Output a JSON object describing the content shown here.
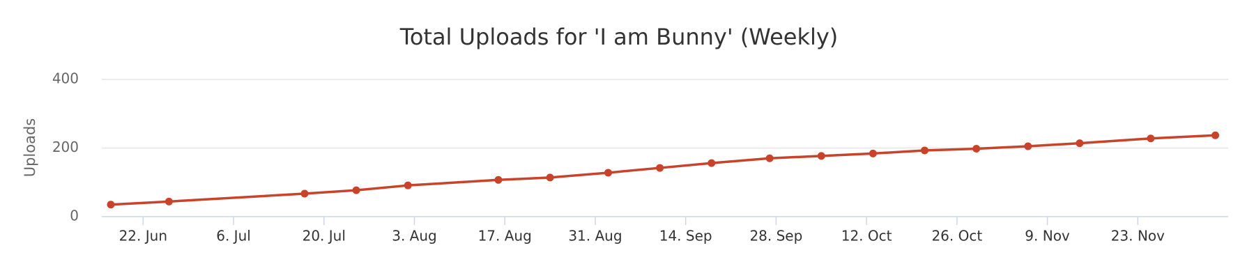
{
  "chart_data": {
    "type": "line",
    "title": "Total Uploads for 'I am Bunny' (Weekly)",
    "y_label": "Uploads",
    "x": [
      168,
      177,
      198,
      206,
      214,
      228,
      236,
      245,
      253,
      261,
      270,
      278,
      286,
      294,
      302,
      310,
      318,
      329,
      339
    ],
    "series": [
      {
        "name": "Uploads",
        "color": "#c9432b",
        "values": [
          35,
          44,
          67,
          77,
          91,
          107,
          114,
          128,
          142,
          156,
          170,
          177,
          184,
          193,
          198,
          205,
          214,
          228,
          237
        ]
      }
    ],
    "xlim": [
      166.6,
      341
    ],
    "xticks": [
      {
        "value": 173,
        "label": "22. Jun"
      },
      {
        "value": 187,
        "label": "6. Jul"
      },
      {
        "value": 201,
        "label": "20. Jul"
      },
      {
        "value": 215,
        "label": "3. Aug"
      },
      {
        "value": 229,
        "label": "17. Aug"
      },
      {
        "value": 243,
        "label": "31. Aug"
      },
      {
        "value": 257,
        "label": "14. Sep"
      },
      {
        "value": 271,
        "label": "28. Sep"
      },
      {
        "value": 285,
        "label": "12. Oct"
      },
      {
        "value": 299,
        "label": "26. Oct"
      },
      {
        "value": 313,
        "label": "9. Nov"
      },
      {
        "value": 327,
        "label": "23. Nov"
      }
    ],
    "ylim": [
      0,
      400
    ],
    "yticks": [
      0,
      200,
      400
    ],
    "grid": true
  }
}
